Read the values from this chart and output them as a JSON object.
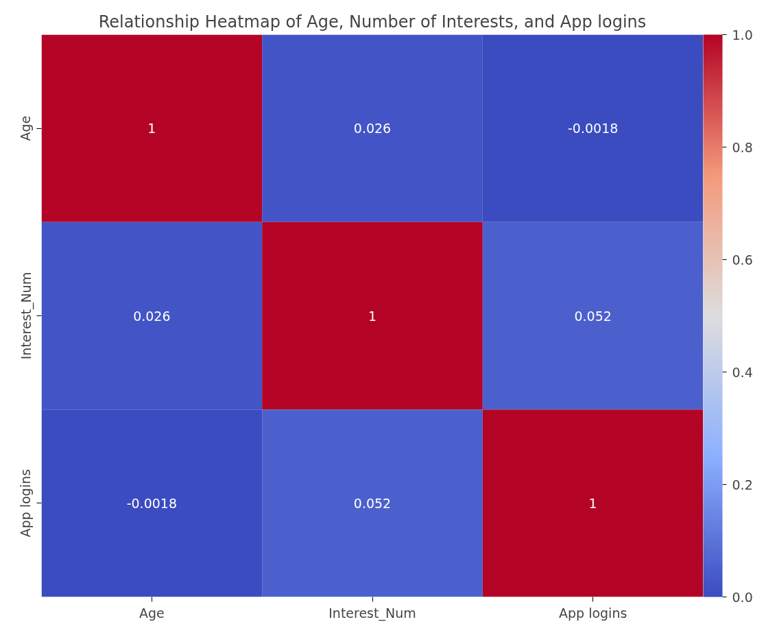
{
  "chart_data": {
    "type": "heatmap",
    "title": "Relationship Heatmap of Age, Number of Interests, and App logins",
    "categories": [
      "Age",
      "Interest_Num",
      "App logins"
    ],
    "y_categories": [
      "Age",
      "Interest_Num",
      "App logins"
    ],
    "cells": [
      [
        1,
        0.026,
        -0.0018
      ],
      [
        0.026,
        1,
        0.052
      ],
      [
        -0.0018,
        0.052,
        1
      ]
    ],
    "data_labels": true,
    "clim": [
      0,
      1
    ],
    "cticks": [
      {
        "value": 0,
        "label": "0.0"
      },
      {
        "value": 0.2,
        "label": "0.2"
      },
      {
        "value": 0.4,
        "label": "0.4"
      },
      {
        "value": 0.6,
        "label": "0.6"
      },
      {
        "value": 0.8,
        "label": "0.8"
      },
      {
        "value": 1,
        "label": "1.0"
      }
    ]
  }
}
